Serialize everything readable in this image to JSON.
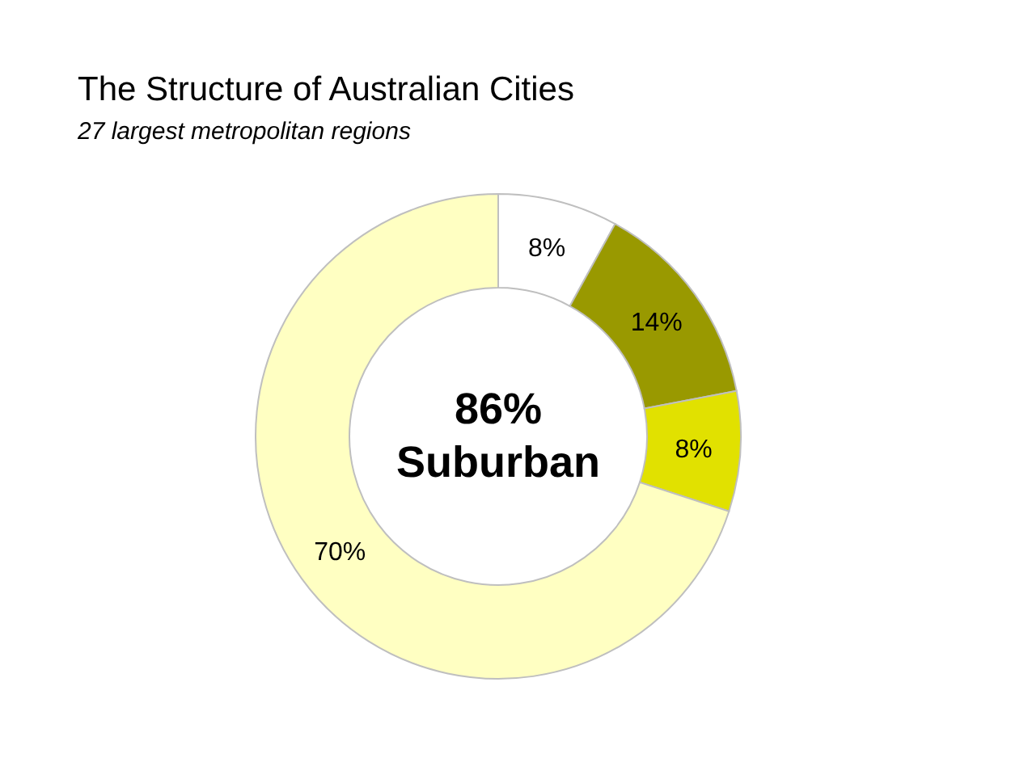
{
  "chart_data": {
    "type": "donut",
    "title": "The Structure of Australian Cities",
    "subtitle": "27 largest metropolitan regions",
    "categories": [
      null,
      null,
      null,
      null
    ],
    "values": [
      8,
      14,
      8,
      70
    ],
    "colors": [
      "#ffffff",
      "#999900",
      "#e1e100",
      "#ffffc2"
    ],
    "value_labels": [
      "8%",
      "14%",
      "8%",
      "70%"
    ],
    "annotations": [
      "86% Suburban"
    ]
  }
}
